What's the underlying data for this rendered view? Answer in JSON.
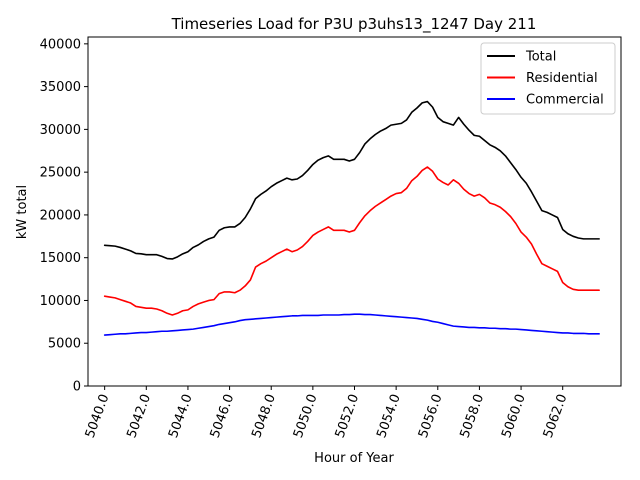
{
  "chart_data": {
    "type": "line",
    "title": "Timeseries Load for P3U p3uhs13_1247  Day 211",
    "xlabel": "Hour of Year",
    "ylabel": "kW total",
    "xlim": [
      5039.2,
      5064.8
    ],
    "ylim": [
      0,
      40800
    ],
    "x_ticks": [
      5040,
      5042,
      5044,
      5046,
      5048,
      5050,
      5052,
      5054,
      5056,
      5058,
      5060,
      5062
    ],
    "x_tick_labels": [
      "5040.0",
      "5042.0",
      "5044.0",
      "5046.0",
      "5048.0",
      "5050.0",
      "5052.0",
      "5054.0",
      "5056.0",
      "5058.0",
      "5060.0",
      "5062.0"
    ],
    "y_ticks": [
      0,
      5000,
      10000,
      15000,
      20000,
      25000,
      30000,
      35000,
      40000
    ],
    "y_tick_labels": [
      "0",
      "5000",
      "10000",
      "15000",
      "20000",
      "25000",
      "30000",
      "35000",
      "40000"
    ],
    "legend_position": "top-right",
    "x": [
      5040.0,
      5040.25,
      5040.5,
      5040.75,
      5041.0,
      5041.25,
      5041.5,
      5041.75,
      5042.0,
      5042.25,
      5042.5,
      5042.75,
      5043.0,
      5043.25,
      5043.5,
      5043.75,
      5044.0,
      5044.25,
      5044.5,
      5044.75,
      5045.0,
      5045.25,
      5045.5,
      5045.75,
      5046.0,
      5046.25,
      5046.5,
      5046.75,
      5047.0,
      5047.25,
      5047.5,
      5047.75,
      5048.0,
      5048.25,
      5048.5,
      5048.75,
      5049.0,
      5049.25,
      5049.5,
      5049.75,
      5050.0,
      5050.25,
      5050.5,
      5050.75,
      5051.0,
      5051.25,
      5051.5,
      5051.75,
      5052.0,
      5052.25,
      5052.5,
      5052.75,
      5053.0,
      5053.25,
      5053.5,
      5053.75,
      5054.0,
      5054.25,
      5054.5,
      5054.75,
      5055.0,
      5055.25,
      5055.5,
      5055.75,
      5056.0,
      5056.25,
      5056.5,
      5056.75,
      5057.0,
      5057.25,
      5057.5,
      5057.75,
      5058.0,
      5058.25,
      5058.5,
      5058.75,
      5059.0,
      5059.25,
      5059.5,
      5059.75,
      5060.0,
      5060.25,
      5060.5,
      5060.75,
      5061.0,
      5061.25,
      5061.5,
      5061.75,
      5062.0,
      5062.25,
      5062.5,
      5062.75,
      5063.0,
      5063.25,
      5063.5,
      5063.75
    ],
    "series": [
      {
        "name": "Total",
        "color": "#000000",
        "values": [
          16450,
          16400,
          16350,
          16200,
          16000,
          15800,
          15500,
          15450,
          15350,
          15350,
          15350,
          15150,
          14900,
          14850,
          15100,
          15450,
          15700,
          16200,
          16500,
          16900,
          17200,
          17400,
          18200,
          18500,
          18600,
          18600,
          19000,
          19700,
          20700,
          21900,
          22400,
          22800,
          23300,
          23700,
          24000,
          24300,
          24100,
          24200,
          24600,
          25200,
          25900,
          26400,
          26700,
          26900,
          26500,
          26500,
          26500,
          26300,
          26500,
          27300,
          28300,
          28900,
          29400,
          29800,
          30100,
          30500,
          30600,
          30700,
          31100,
          32000,
          32500,
          33100,
          33250,
          32600,
          31400,
          30900,
          30700,
          30500,
          31400,
          30600,
          29900,
          29300,
          29200,
          28700,
          28200,
          27900,
          27500,
          26900,
          26100,
          25300,
          24400,
          23700,
          22700,
          21600,
          20500,
          20300,
          20000,
          19700,
          18300,
          17800,
          17500,
          17300,
          17200,
          17200,
          17200,
          17200
        ],
        "series_type": "line"
      },
      {
        "name": "Residential",
        "color": "#ff0000",
        "values": [
          10500,
          10400,
          10300,
          10100,
          9900,
          9700,
          9300,
          9200,
          9100,
          9100,
          9000,
          8800,
          8500,
          8300,
          8500,
          8800,
          8900,
          9300,
          9600,
          9800,
          10000,
          10100,
          10800,
          11000,
          11000,
          10900,
          11200,
          11700,
          12400,
          13900,
          14300,
          14600,
          15000,
          15400,
          15700,
          16000,
          15700,
          15900,
          16300,
          16900,
          17600,
          18000,
          18300,
          18600,
          18200,
          18200,
          18200,
          18000,
          18200,
          19100,
          19900,
          20500,
          21000,
          21400,
          21800,
          22200,
          22500,
          22600,
          23100,
          24000,
          24500,
          25200,
          25600,
          25100,
          24200,
          23800,
          23500,
          24100,
          23700,
          23000,
          22500,
          22200,
          22400,
          22000,
          21400,
          21200,
          20900,
          20400,
          19800,
          19000,
          18000,
          17400,
          16600,
          15400,
          14300,
          14000,
          13700,
          13400,
          12100,
          11600,
          11300,
          11200,
          11200,
          11200,
          11200,
          11200
        ],
        "series_type": "line"
      },
      {
        "name": "Commercial",
        "color": "#0000ff",
        "values": [
          5950,
          6000,
          6050,
          6100,
          6100,
          6150,
          6200,
          6250,
          6250,
          6300,
          6350,
          6400,
          6400,
          6450,
          6500,
          6550,
          6600,
          6650,
          6750,
          6850,
          6950,
          7050,
          7200,
          7300,
          7400,
          7500,
          7650,
          7750,
          7800,
          7850,
          7900,
          7950,
          8000,
          8050,
          8100,
          8150,
          8200,
          8200,
          8250,
          8250,
          8250,
          8250,
          8300,
          8300,
          8300,
          8300,
          8350,
          8350,
          8400,
          8400,
          8350,
          8350,
          8300,
          8250,
          8200,
          8150,
          8100,
          8050,
          8000,
          7950,
          7900,
          7800,
          7700,
          7550,
          7450,
          7300,
          7150,
          7000,
          6950,
          6900,
          6850,
          6850,
          6800,
          6800,
          6750,
          6750,
          6700,
          6700,
          6650,
          6650,
          6600,
          6550,
          6500,
          6450,
          6400,
          6350,
          6300,
          6250,
          6200,
          6200,
          6150,
          6150,
          6150,
          6100,
          6100,
          6100
        ],
        "series_type": "line"
      }
    ]
  }
}
